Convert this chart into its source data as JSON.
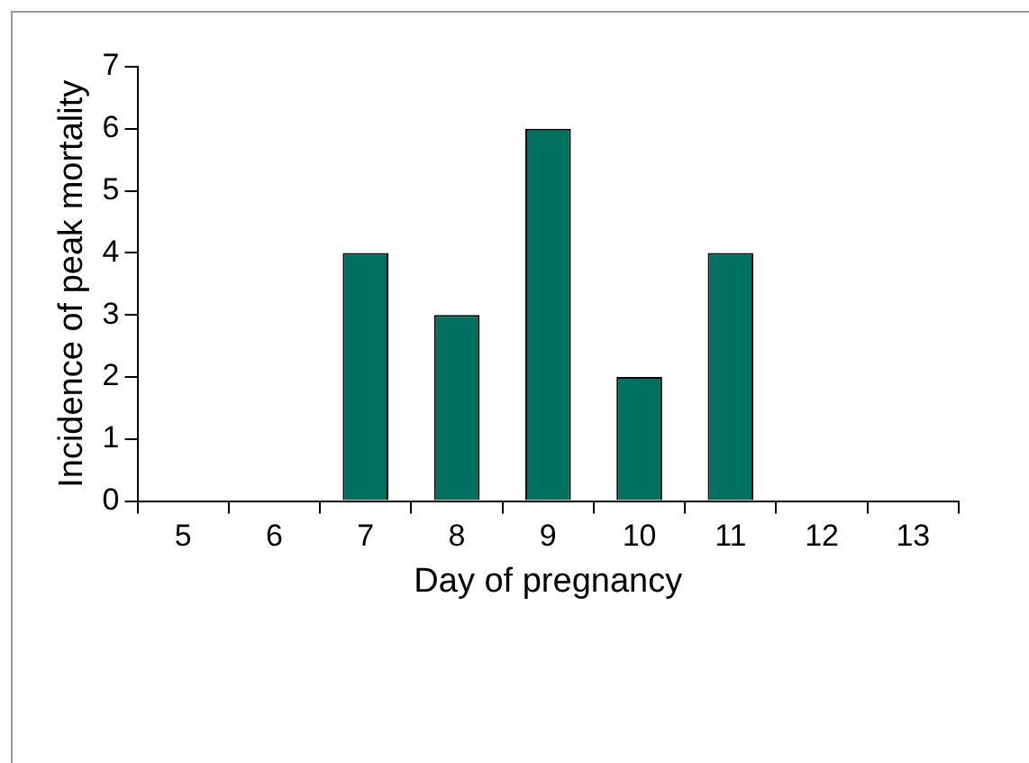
{
  "chart_data": {
    "type": "bar",
    "xlabel": "Day of pregnancy",
    "ylabel": "Incidence of peak mortality",
    "categories": [
      "5",
      "6",
      "7",
      "8",
      "9",
      "10",
      "11",
      "12",
      "13"
    ],
    "values": [
      0,
      0,
      4,
      3,
      6,
      2,
      4,
      0,
      0
    ],
    "color": "#00715f",
    "ylim": [
      0,
      7
    ],
    "yticks": [
      0,
      1,
      2,
      3,
      4,
      5,
      6,
      7
    ],
    "grid": false
  }
}
